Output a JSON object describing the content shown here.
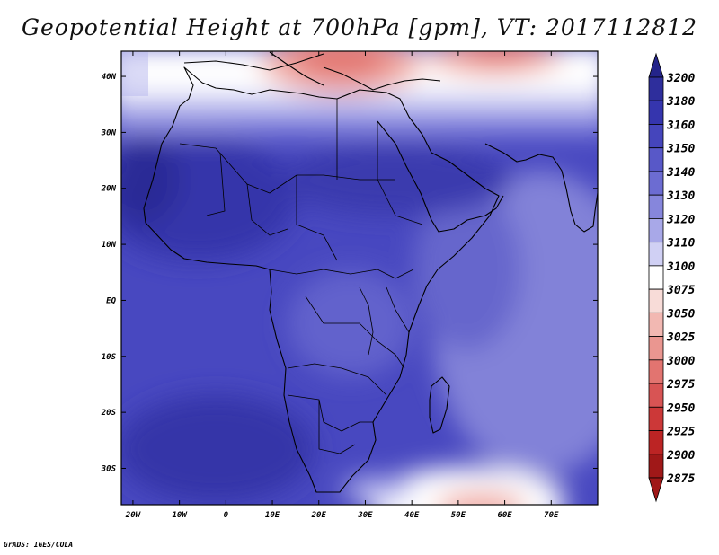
{
  "title": "Geopotential Height at 700hPa [gpm], VT: 2017112812",
  "credit": "GrADS: IGES/COLA",
  "map": {
    "x_ticks": [
      {
        "lon": -20,
        "label": "20W"
      },
      {
        "lon": -10,
        "label": "10W"
      },
      {
        "lon": 0,
        "label": "0"
      },
      {
        "lon": 10,
        "label": "10E"
      },
      {
        "lon": 20,
        "label": "20E"
      },
      {
        "lon": 30,
        "label": "30E"
      },
      {
        "lon": 40,
        "label": "40E"
      },
      {
        "lon": 50,
        "label": "50E"
      },
      {
        "lon": 60,
        "label": "60E"
      },
      {
        "lon": 70,
        "label": "70E"
      }
    ],
    "y_ticks": [
      {
        "lat": 40,
        "label": "40N"
      },
      {
        "lat": 30,
        "label": "30N"
      },
      {
        "lat": 20,
        "label": "20N"
      },
      {
        "lat": 10,
        "label": "10N"
      },
      {
        "lat": 0,
        "label": "EQ"
      },
      {
        "lat": -10,
        "label": "10S"
      },
      {
        "lat": -20,
        "label": "20S"
      },
      {
        "lat": -30,
        "label": "30S"
      }
    ]
  },
  "colorbar": {
    "levels": [
      {
        "label": "3200",
        "color": "#2a2a8e"
      },
      {
        "label": "3180",
        "color": "#2e2e9c"
      },
      {
        "label": "3160",
        "color": "#3535ae"
      },
      {
        "label": "3150",
        "color": "#4545bc"
      },
      {
        "label": "3140",
        "color": "#5858c8"
      },
      {
        "label": "3130",
        "color": "#6c6cd2"
      },
      {
        "label": "3120",
        "color": "#8686dc"
      },
      {
        "label": "3110",
        "color": "#a8a8e8"
      },
      {
        "label": "3100",
        "color": "#d0d0f4"
      },
      {
        "label": "3075",
        "color": "#ffffff"
      },
      {
        "label": "3050",
        "color": "#f8dcd8"
      },
      {
        "label": "3025",
        "color": "#f2b8b2"
      },
      {
        "label": "3000",
        "color": "#ea9690"
      },
      {
        "label": "2975",
        "color": "#e27470"
      },
      {
        "label": "2950",
        "color": "#d85454"
      },
      {
        "label": "2925",
        "color": "#cc3838"
      },
      {
        "label": "2900",
        "color": "#bc2424"
      },
      {
        "label": "2875",
        "color": "#a01818"
      }
    ],
    "top_arrow_color": "#24248a",
    "bottom_arrow_color": "#a01818"
  }
}
